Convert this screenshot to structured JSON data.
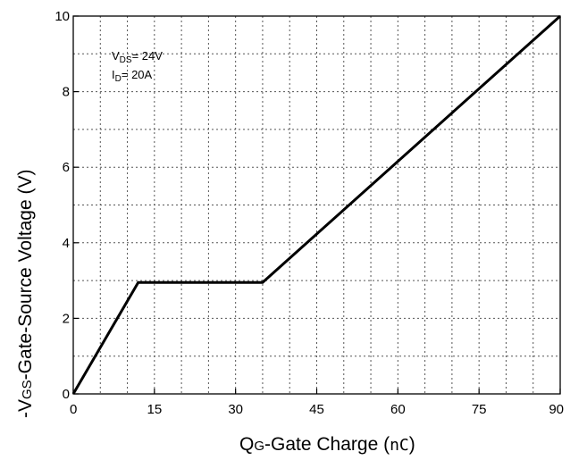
{
  "chart_data": {
    "type": "line",
    "title": "",
    "xlabel": {
      "main": "Q",
      "sub": "G",
      "rest": "-Gate Charge (",
      "unit": "nC",
      "close": ")"
    },
    "ylabel": {
      "main": "-V",
      "sub": "GS",
      "rest": "-Gate-Source Voltage (V)"
    },
    "xlim": [
      0,
      90
    ],
    "ylim": [
      0,
      10
    ],
    "xticks": [
      "0",
      "15",
      "30",
      "45",
      "60",
      "75",
      "90"
    ],
    "yticks": [
      "0",
      "2",
      "4",
      "6",
      "8",
      "10"
    ],
    "grid": true,
    "grid_style": "dotted",
    "series": [
      {
        "x": [
          0,
          12,
          35,
          90
        ],
        "y": [
          0,
          2.95,
          2.95,
          10
        ],
        "color": "#000000"
      }
    ],
    "annotations": [
      {
        "main": "V",
        "sub": "DS",
        "rest": "= 24V"
      },
      {
        "main": "I",
        "sub": "D",
        "rest": "= 20A"
      }
    ]
  }
}
